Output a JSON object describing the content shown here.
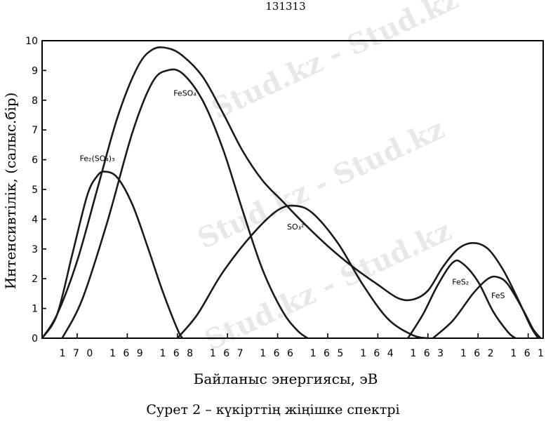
{
  "header_text": "131313",
  "caption": "Сурет 2 – күкірттің жіңішке спектрі",
  "watermark": "Stud.kz - Stud.kz",
  "chart_data": {
    "type": "line",
    "title": "",
    "xlabel": "Байланыс энергиясы, эВ",
    "ylabel": "Интенсивтілік, (салыс.бір)",
    "x_reversed": true,
    "xlim": [
      160.7,
      170.7
    ],
    "ylim": [
      0,
      10
    ],
    "x_ticks": [
      170,
      169,
      168,
      167,
      166,
      165,
      164,
      163,
      162,
      161
    ],
    "y_ticks": [
      0,
      1,
      2,
      3,
      4,
      5,
      6,
      7,
      8,
      9,
      10
    ],
    "grid": false,
    "curves": [
      {
        "id": "envelope",
        "points": [
          [
            170.7,
            0
          ],
          [
            170.4,
            0.8
          ],
          [
            170.0,
            2.6
          ],
          [
            169.6,
            5.0
          ],
          [
            169.2,
            7.4
          ],
          [
            168.8,
            9.1
          ],
          [
            168.5,
            9.7
          ],
          [
            168.2,
            9.75
          ],
          [
            167.9,
            9.5
          ],
          [
            167.5,
            8.8
          ],
          [
            167.1,
            7.6
          ],
          [
            166.7,
            6.3
          ],
          [
            166.3,
            5.3
          ],
          [
            165.9,
            4.6
          ],
          [
            165.5,
            3.9
          ],
          [
            165.0,
            3.1
          ],
          [
            164.5,
            2.4
          ],
          [
            164.0,
            1.8
          ],
          [
            163.6,
            1.35
          ],
          [
            163.3,
            1.3
          ],
          [
            163.0,
            1.6
          ],
          [
            162.7,
            2.4
          ],
          [
            162.4,
            3.0
          ],
          [
            162.1,
            3.2
          ],
          [
            161.8,
            3.0
          ],
          [
            161.5,
            2.3
          ],
          [
            161.2,
            1.3
          ],
          [
            160.95,
            0.4
          ],
          [
            160.8,
            0
          ]
        ]
      },
      {
        "id": "fe2so43",
        "label": "Fe₂(SO₄)₃",
        "points": [
          [
            170.7,
            0
          ],
          [
            170.4,
            0.8
          ],
          [
            170.1,
            2.8
          ],
          [
            169.8,
            4.8
          ],
          [
            169.6,
            5.45
          ],
          [
            169.45,
            5.6
          ],
          [
            169.2,
            5.4
          ],
          [
            168.9,
            4.5
          ],
          [
            168.6,
            3.1
          ],
          [
            168.3,
            1.6
          ],
          [
            168.0,
            0.3
          ],
          [
            167.9,
            0
          ]
        ]
      },
      {
        "id": "feso4",
        "label": "FeSO₄",
        "points": [
          [
            170.3,
            0
          ],
          [
            169.9,
            1.3
          ],
          [
            169.4,
            3.9
          ],
          [
            168.9,
            6.9
          ],
          [
            168.5,
            8.6
          ],
          [
            168.2,
            9.0
          ],
          [
            167.9,
            8.9
          ],
          [
            167.5,
            8.0
          ],
          [
            167.1,
            6.4
          ],
          [
            166.7,
            4.3
          ],
          [
            166.3,
            2.3
          ],
          [
            165.9,
            0.9
          ],
          [
            165.6,
            0.25
          ],
          [
            165.4,
            0
          ]
        ]
      },
      {
        "id": "so3",
        "label": "SO₃²⁻",
        "points": [
          [
            168.0,
            0
          ],
          [
            167.6,
            0.8
          ],
          [
            167.1,
            2.2
          ],
          [
            166.5,
            3.5
          ],
          [
            166.0,
            4.3
          ],
          [
            165.65,
            4.45
          ],
          [
            165.3,
            4.2
          ],
          [
            164.8,
            3.2
          ],
          [
            164.3,
            1.8
          ],
          [
            163.8,
            0.65
          ],
          [
            163.3,
            0.1
          ],
          [
            163.0,
            0
          ]
        ]
      },
      {
        "id": "fes2",
        "label": "FeS₂",
        "points": [
          [
            163.4,
            0
          ],
          [
            163.1,
            0.8
          ],
          [
            162.8,
            1.8
          ],
          [
            162.5,
            2.55
          ],
          [
            162.3,
            2.5
          ],
          [
            162.0,
            1.9
          ],
          [
            161.7,
            0.9
          ],
          [
            161.4,
            0.2
          ],
          [
            161.25,
            0
          ]
        ]
      },
      {
        "id": "fes",
        "label": "FeS",
        "points": [
          [
            162.9,
            0
          ],
          [
            162.5,
            0.6
          ],
          [
            162.1,
            1.5
          ],
          [
            161.8,
            2.0
          ],
          [
            161.6,
            2.05
          ],
          [
            161.4,
            1.8
          ],
          [
            161.1,
            0.95
          ],
          [
            160.9,
            0.3
          ],
          [
            160.75,
            0
          ]
        ]
      }
    ]
  }
}
